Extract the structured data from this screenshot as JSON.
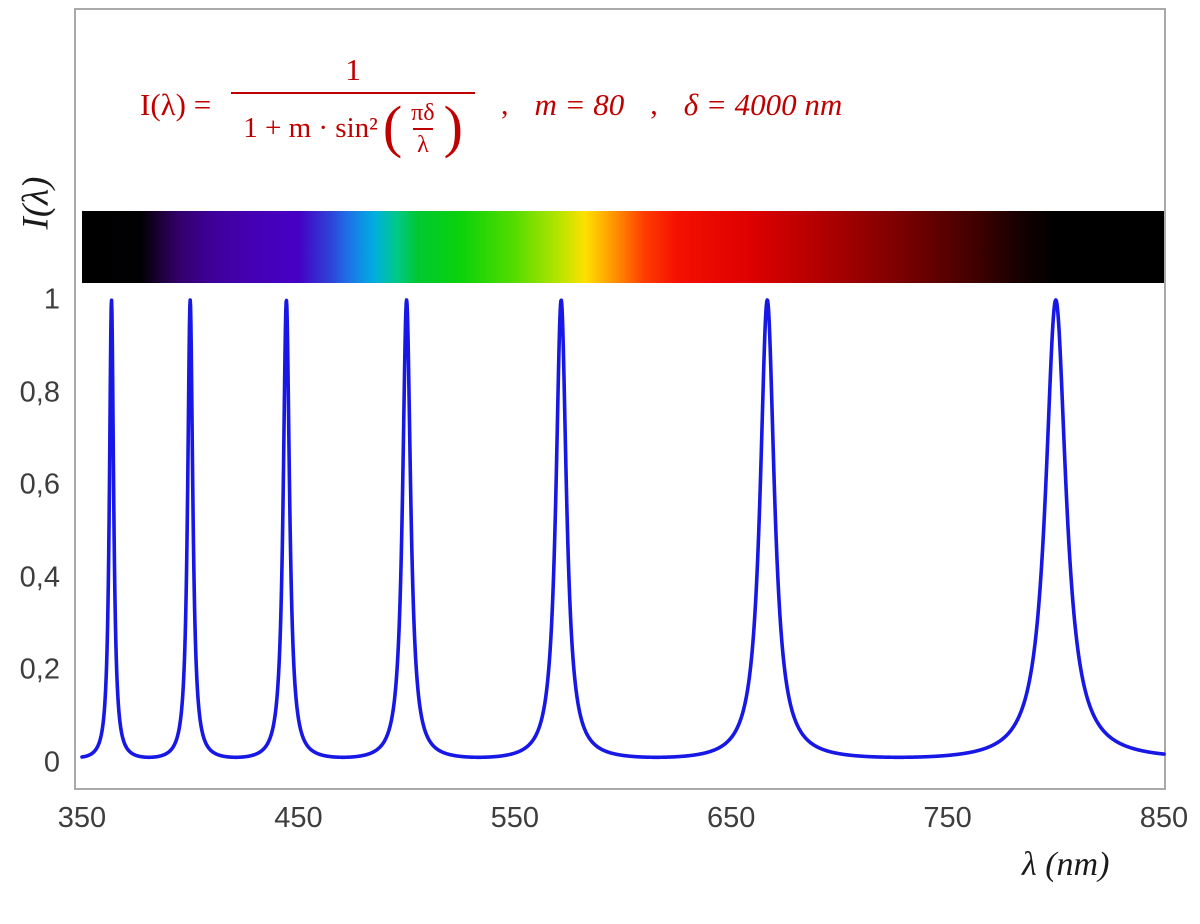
{
  "chart_data": {
    "type": "line",
    "title": "I(λ) = 1 / (1 + m·sin²(πδ/λ)) ,  m = 80 ,  δ = 4000 nm",
    "formula": {
      "lhs": "I(λ) =",
      "numerator": "1",
      "den_prefix": "1 + m · sin²",
      "open_paren": "(",
      "inner_num": "πδ",
      "inner_den": "λ",
      "close_paren": ")",
      "comma1": ",",
      "m_eq": "m = 80",
      "comma2": ",",
      "delta_eq": "δ = 4000 nm"
    },
    "m": 80,
    "delta_nm": 4000,
    "xlabel": "λ  (nm)",
    "ylabel": "I(λ)",
    "xlim": [
      350,
      850
    ],
    "ylim": [
      0,
      1
    ],
    "xticks": [
      "350",
      "450",
      "550",
      "650",
      "750",
      "850"
    ],
    "yticks": [
      "1",
      "0,8",
      "0,6",
      "0,4",
      "0,2",
      "0"
    ],
    "peaks_nm": [
      363.6,
      400,
      444.4,
      500,
      571.4,
      666.7,
      800
    ],
    "peak_value": 1,
    "baseline_value": 0.012,
    "grid": false,
    "legend": "none",
    "curve_color": "#1717e6",
    "formula_color": "#c00000",
    "spectrum_stops": [
      {
        "pos": 0,
        "color": "#000000"
      },
      {
        "pos": 5.5,
        "color": "#010103"
      },
      {
        "pos": 7,
        "color": "#1a0033"
      },
      {
        "pos": 9,
        "color": "#33006b"
      },
      {
        "pos": 12,
        "color": "#3f0099"
      },
      {
        "pos": 16,
        "color": "#4500b5"
      },
      {
        "pos": 20,
        "color": "#4600c4"
      },
      {
        "pos": 23,
        "color": "#2d43d8"
      },
      {
        "pos": 24.5,
        "color": "#1f6fe8"
      },
      {
        "pos": 27,
        "color": "#00aee0"
      },
      {
        "pos": 29,
        "color": "#00c88c"
      },
      {
        "pos": 31,
        "color": "#00c832"
      },
      {
        "pos": 35,
        "color": "#0ad20a"
      },
      {
        "pos": 40,
        "color": "#55dc00"
      },
      {
        "pos": 44,
        "color": "#b4e400"
      },
      {
        "pos": 46.5,
        "color": "#ffe000"
      },
      {
        "pos": 49,
        "color": "#ff9900"
      },
      {
        "pos": 52,
        "color": "#ff3c00"
      },
      {
        "pos": 55,
        "color": "#f51000"
      },
      {
        "pos": 62,
        "color": "#dc0000"
      },
      {
        "pos": 68,
        "color": "#b40000"
      },
      {
        "pos": 75,
        "color": "#800000"
      },
      {
        "pos": 82,
        "color": "#460000"
      },
      {
        "pos": 87,
        "color": "#140000"
      },
      {
        "pos": 90,
        "color": "#000000"
      },
      {
        "pos": 100,
        "color": "#000000"
      }
    ]
  }
}
